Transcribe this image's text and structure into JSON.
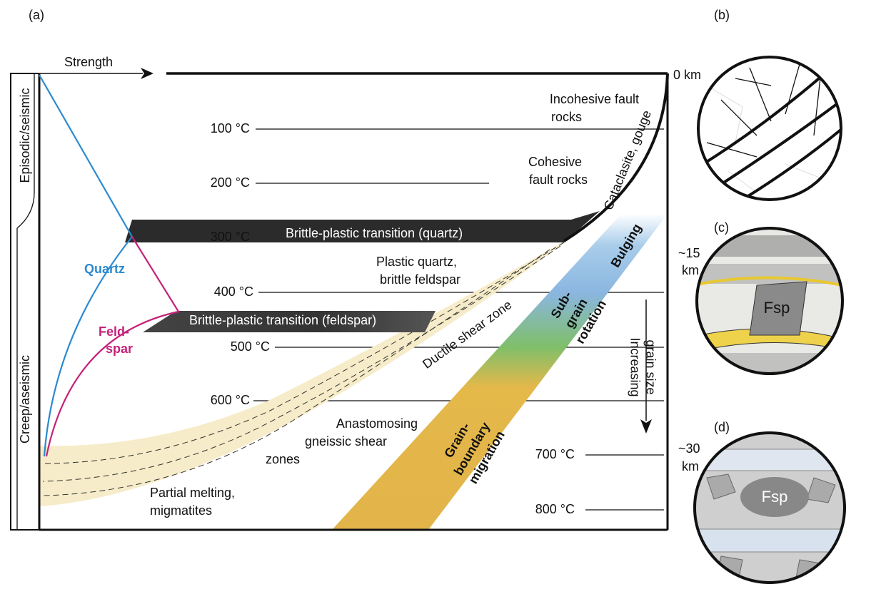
{
  "panels": {
    "a": "(a)",
    "b": "(b)",
    "c": "(c)",
    "d": "(d)"
  },
  "strength": "Strength",
  "depths": {
    "surface": "0 km",
    "mid": [
      "~15",
      "km"
    ],
    "deep": [
      "~30",
      "km"
    ]
  },
  "regimes": {
    "upper": "Episodic/seismic",
    "lower": "Creep/aseismic"
  },
  "curves": {
    "quartz": "Quartz",
    "feldspar": [
      "Feld-",
      "spar"
    ]
  },
  "temperatures": [
    "100 °C",
    "200 °C",
    "300 °C",
    "400 °C",
    "500 °C",
    "600 °C",
    "700 °C",
    "800 °C"
  ],
  "zones": {
    "incohesive": [
      "Incohesive fault",
      "rocks"
    ],
    "cohesive": [
      "Cohesive",
      "fault rocks"
    ],
    "cataclasite": "Cataclasite, gouge",
    "quartz_transition": "Brittle-plastic transition (quartz)",
    "plastic_quartz": [
      "Plastic quartz,",
      "brittle feldspar"
    ],
    "feldspar_transition": "Brittle-plastic transition (feldspar)",
    "ductile": "Ductile shear zone",
    "anastomosing": [
      "Anastomosing",
      "gneissic shear",
      "zones"
    ],
    "melting": [
      "Partial melting,",
      "migmatites"
    ]
  },
  "mechanisms": {
    "bulging": "Bulging",
    "subgrain": [
      "Sub-",
      "grain",
      "rotation"
    ],
    "gbm": [
      "Grain-",
      "boundary",
      "migration"
    ]
  },
  "grain_size": [
    "Increasing",
    "grain size"
  ],
  "fsp_c": "Fsp",
  "fsp_d": "Fsp"
}
